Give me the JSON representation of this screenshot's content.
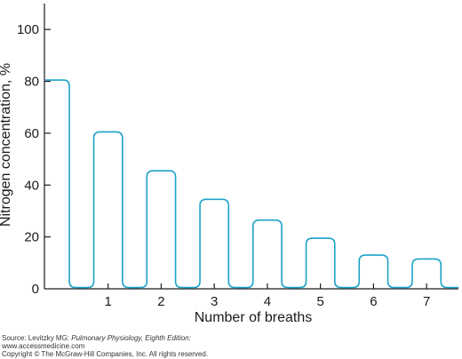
{
  "chart_data": {
    "type": "line",
    "title": "",
    "xlabel": "Number of breaths",
    "ylabel": "Nitrogen concentration, %",
    "ylim": [
      0,
      110
    ],
    "xlim": [
      -0.2,
      7.6
    ],
    "yticks": [
      0,
      20,
      40,
      60,
      80,
      100
    ],
    "xticks": [
      1,
      2,
      3,
      4,
      5,
      6,
      7
    ],
    "grid": false,
    "legend": "none",
    "line_color": "#1aa3c7",
    "series": [
      {
        "peaks": [
          {
            "breath": 0,
            "value": 80.5
          },
          {
            "breath": 1,
            "value": 60.5
          },
          {
            "breath": 2,
            "value": 45.5
          },
          {
            "breath": 3,
            "value": 34.5
          },
          {
            "breath": 4,
            "value": 26.5
          },
          {
            "breath": 5,
            "value": 19.5
          },
          {
            "breath": 6,
            "value": 13
          },
          {
            "breath": 7,
            "value": 11.5
          }
        ],
        "trough_value": 0.5
      }
    ]
  },
  "source": {
    "prefix": "Source: Levitzky MG: ",
    "book": "Pulmonary Physiology, Eighth Edition:",
    "url": "www.accessmedicine.com",
    "copyright": "Copyright © The McGraw-Hill Companies, Inc. All rights reserved."
  }
}
